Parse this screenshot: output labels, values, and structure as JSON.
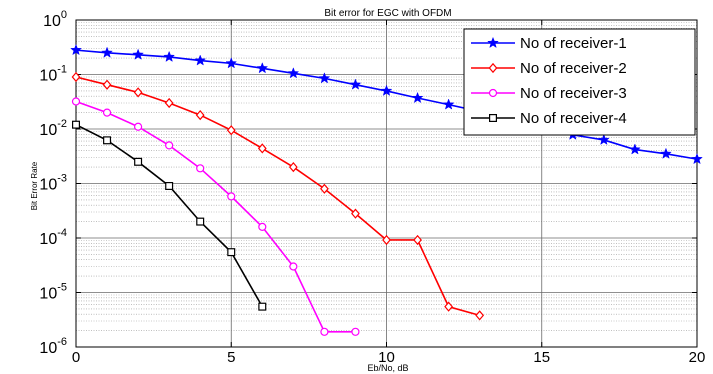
{
  "chart_data": {
    "type": "line",
    "title": "Bit error for EGC with OFDM",
    "xlabel": "Eb/No, dB",
    "ylabel": "Bit Error Rate",
    "xlim": [
      0,
      20
    ],
    "ylim_log10": [
      -6,
      0
    ],
    "y_scale": "log",
    "grid": true,
    "legend_position": "top-right",
    "x_ticks": [
      "0",
      "5",
      "10",
      "15",
      "20"
    ],
    "y_ticks": [
      {
        "base": "10",
        "exp": "0"
      },
      {
        "base": "10",
        "exp": "-1"
      },
      {
        "base": "10",
        "exp": "-2"
      },
      {
        "base": "10",
        "exp": "-3"
      },
      {
        "base": "10",
        "exp": "-4"
      },
      {
        "base": "10",
        "exp": "-5"
      },
      {
        "base": "10",
        "exp": "-6"
      }
    ],
    "series": [
      {
        "name": "No of receiver-1",
        "color": "#0000ff",
        "marker": "star",
        "x": [
          0,
          1,
          2,
          3,
          4,
          5,
          6,
          7,
          8,
          9,
          10,
          11,
          12,
          13,
          14,
          15,
          16,
          17,
          18,
          19,
          20
        ],
        "y": [
          0.28,
          0.25,
          0.23,
          0.21,
          0.18,
          0.16,
          0.13,
          0.105,
          0.085,
          0.065,
          0.05,
          0.037,
          0.028,
          0.021,
          0.015,
          0.012,
          0.0078,
          0.0063,
          0.0042,
          0.0035,
          0.0028
        ]
      },
      {
        "name": "No of receiver-2",
        "color": "#ff0000",
        "marker": "diamond",
        "x": [
          0,
          1,
          2,
          3,
          4,
          5,
          6,
          7,
          8,
          9,
          10,
          11,
          12,
          13
        ],
        "y": [
          0.09,
          0.065,
          0.047,
          0.03,
          0.018,
          0.0095,
          0.0044,
          0.002,
          0.0008,
          0.00028,
          9.2e-05,
          9.2e-05,
          5.5e-06,
          3.8e-06
        ]
      },
      {
        "name": "No of receiver-3",
        "color": "#ff00ff",
        "marker": "circle",
        "x": [
          0,
          1,
          2,
          3,
          4,
          5,
          6,
          7,
          8,
          9
        ],
        "y": [
          0.032,
          0.02,
          0.011,
          0.005,
          0.0019,
          0.00058,
          0.00016,
          3e-05,
          1.9e-06,
          1.9e-06
        ]
      },
      {
        "name": "No of receiver-4",
        "color": "#000000",
        "marker": "square",
        "x": [
          0,
          1,
          2,
          3,
          4,
          5,
          6
        ],
        "y": [
          0.012,
          0.0062,
          0.0025,
          0.0009,
          0.0002,
          5.5e-05,
          5.5e-06
        ]
      }
    ]
  }
}
